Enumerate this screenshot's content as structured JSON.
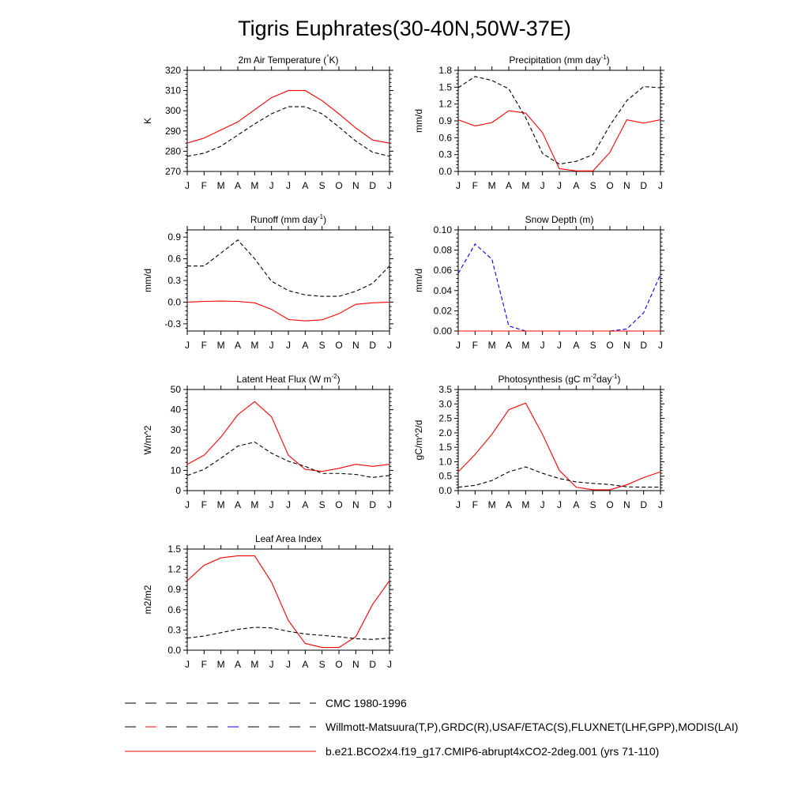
{
  "title": "Tigris Euphrates(30-40N,50W-37E)",
  "months": [
    "J",
    "F",
    "M",
    "A",
    "M",
    "J",
    "J",
    "A",
    "S",
    "O",
    "N",
    "D",
    "J"
  ],
  "legend": [
    {
      "label": "CMC 1980-1996",
      "style": "dash-black"
    },
    {
      "label": "Willmott-Matsuura(T,P),GRDC(R),USAF/ETAC(S),FLUXNET(LHF,GPP),MODIS(LAI)",
      "style": "dash-obs"
    },
    {
      "label": "b.e21.BCO2x4.f19_g17.CMIP6-abrupt4xCO2-2deg.001 (yrs 71-110)",
      "style": "solid-red"
    }
  ],
  "chart_data": [
    {
      "type": "line",
      "title": "2m Air Temperature (°K)",
      "ylabel": "K",
      "ylim": [
        270,
        320
      ],
      "yticks": [
        270,
        280,
        290,
        300,
        310,
        320
      ],
      "categories": [
        "J",
        "F",
        "M",
        "A",
        "M",
        "J",
        "J",
        "A",
        "S",
        "O",
        "N",
        "D",
        "J"
      ],
      "series": [
        {
          "name": "b.e21.BCO2x4.f19_g17.CMIP6-abrupt4xCO2-2deg.001 (yrs 71-110)",
          "color": "#ff0000",
          "dash": "solid",
          "values": [
            284,
            286.5,
            290.5,
            294.5,
            300.5,
            306.5,
            310,
            310,
            305,
            298.5,
            291.5,
            285.5,
            284
          ]
        },
        {
          "name": "Willmott-Matsuura",
          "color": "#000000",
          "dash": "dashed",
          "values": [
            277.5,
            279,
            282.5,
            288,
            293.5,
            298.5,
            302,
            302,
            298.5,
            292,
            285,
            279.5,
            277.5
          ]
        }
      ]
    },
    {
      "type": "line",
      "title": "Precipitation (mm day-1)",
      "ylabel": "mm/d",
      "ylim": [
        0,
        1.8
      ],
      "yticks": [
        0.0,
        0.3,
        0.6,
        0.9,
        1.2,
        1.5,
        1.8
      ],
      "categories": [
        "J",
        "F",
        "M",
        "A",
        "M",
        "J",
        "J",
        "A",
        "S",
        "O",
        "N",
        "D",
        "J"
      ],
      "series": [
        {
          "name": "b.e21.BCO2x4.f19_g17.CMIP6-abrupt4xCO2-2deg.001 (yrs 71-110)",
          "color": "#ff0000",
          "dash": "solid",
          "values": [
            0.92,
            0.81,
            0.87,
            1.08,
            1.04,
            0.69,
            0.05,
            0.01,
            0.01,
            0.34,
            0.92,
            0.86,
            0.92
          ]
        },
        {
          "name": "Willmott-Matsuura",
          "color": "#000000",
          "dash": "dashed",
          "values": [
            1.49,
            1.69,
            1.62,
            1.47,
            0.96,
            0.32,
            0.13,
            0.18,
            0.3,
            0.82,
            1.26,
            1.51,
            1.49
          ]
        }
      ]
    },
    {
      "type": "line",
      "title": "Runoff (mm day-1)",
      "ylabel": "mm/d",
      "ylim": [
        -0.4,
        1.0
      ],
      "yticks": [
        -0.3,
        0.0,
        0.3,
        0.6,
        0.9
      ],
      "categories": [
        "J",
        "F",
        "M",
        "A",
        "M",
        "J",
        "J",
        "A",
        "S",
        "O",
        "N",
        "D",
        "J"
      ],
      "series": [
        {
          "name": "b.e21.BCO2x4.f19_g17.CMIP6-abrupt4xCO2-2deg.001 (yrs 71-110)",
          "color": "#ff0000",
          "dash": "solid",
          "values": [
            0.0,
            0.01,
            0.015,
            0.01,
            -0.01,
            -0.1,
            -0.24,
            -0.26,
            -0.245,
            -0.16,
            -0.03,
            -0.01,
            0.0
          ]
        },
        {
          "name": "GRDC",
          "color": "#000000",
          "dash": "dashed",
          "values": [
            0.5,
            0.5,
            0.68,
            0.86,
            0.6,
            0.29,
            0.16,
            0.1,
            0.08,
            0.08,
            0.15,
            0.26,
            0.5
          ]
        }
      ]
    },
    {
      "type": "line",
      "title": "Snow Depth (m)",
      "ylabel": "mm/d",
      "ylim": [
        0,
        0.1
      ],
      "yticks": [
        0.0,
        0.02,
        0.04,
        0.06,
        0.08,
        0.1
      ],
      "tickFormat": "2dec",
      "categories": [
        "J",
        "F",
        "M",
        "A",
        "M",
        "J",
        "J",
        "A",
        "S",
        "O",
        "N",
        "D",
        "J"
      ],
      "series": [
        {
          "name": "USAF/ETAC",
          "color": "#0000ff",
          "dash": "dashed",
          "values": [
            0.057,
            0.086,
            0.071,
            0.005,
            0.0,
            0.0,
            0.0,
            0.0,
            0.0,
            0.0,
            0.002,
            0.018,
            0.056
          ]
        },
        {
          "name": "CMC 1980-1996",
          "color": "#000000",
          "dash": "dashed",
          "values": [
            0,
            0,
            0,
            0,
            0,
            0,
            0,
            0,
            0,
            0,
            0,
            0,
            0
          ]
        },
        {
          "name": "b.e21.BCO2x4.f19_g17.CMIP6-abrupt4xCO2-2deg.001 (yrs 71-110)",
          "color": "#ff0000",
          "dash": "solid",
          "values": [
            0,
            0,
            0,
            0,
            0,
            0,
            0,
            0,
            0,
            0,
            0,
            0,
            0
          ]
        }
      ]
    },
    {
      "type": "line",
      "title": "Latent Heat Flux (W m-2)",
      "ylabel": "W/m^2",
      "ylim": [
        0,
        50
      ],
      "yticks": [
        0,
        10,
        20,
        30,
        40,
        50
      ],
      "tickFormat": "int",
      "categories": [
        "J",
        "F",
        "M",
        "A",
        "M",
        "J",
        "J",
        "A",
        "S",
        "O",
        "N",
        "D",
        "J"
      ],
      "series": [
        {
          "name": "b.e21.BCO2x4.f19_g17.CMIP6-abrupt4xCO2-2deg.001 (yrs 71-110)",
          "color": "#ff0000",
          "dash": "solid",
          "values": [
            13,
            17.5,
            26.5,
            37.5,
            44,
            36.5,
            17.5,
            10.5,
            9.5,
            11,
            13,
            12,
            13
          ]
        },
        {
          "name": "FLUXNET",
          "color": "#000000",
          "dash": "dashed",
          "values": [
            7.5,
            10.5,
            16,
            22,
            24,
            18.5,
            14.5,
            12,
            8.5,
            8.5,
            8,
            6.5,
            7.5
          ]
        }
      ]
    },
    {
      "type": "line",
      "title": "Photosynthesis (gC m-2day-1)",
      "ylabel": "gC/m^2/d",
      "ylim": [
        0,
        3.5
      ],
      "yticks": [
        0.0,
        0.5,
        1.0,
        1.5,
        2.0,
        2.5,
        3.0,
        3.5
      ],
      "categories": [
        "J",
        "F",
        "M",
        "A",
        "M",
        "J",
        "J",
        "A",
        "S",
        "O",
        "N",
        "D",
        "J"
      ],
      "series": [
        {
          "name": "b.e21.BCO2x4.f19_g17.CMIP6-abrupt4xCO2-2deg.001 (yrs 71-110)",
          "color": "#ff0000",
          "dash": "solid",
          "values": [
            0.65,
            1.25,
            1.95,
            2.8,
            3.03,
            1.95,
            0.7,
            0.12,
            0.03,
            0.03,
            0.2,
            0.45,
            0.65
          ]
        },
        {
          "name": "FLUXNET",
          "color": "#000000",
          "dash": "dashed",
          "values": [
            0.12,
            0.18,
            0.35,
            0.65,
            0.82,
            0.6,
            0.42,
            0.3,
            0.25,
            0.21,
            0.13,
            0.12,
            0.12
          ]
        }
      ]
    },
    {
      "type": "line",
      "title": "Leaf Area Index",
      "ylabel": "m2/m2",
      "ylim": [
        0,
        1.5
      ],
      "yticks": [
        0.0,
        0.3,
        0.6,
        0.9,
        1.2,
        1.5
      ],
      "categories": [
        "J",
        "F",
        "M",
        "A",
        "M",
        "J",
        "J",
        "A",
        "S",
        "O",
        "N",
        "D",
        "J"
      ],
      "series": [
        {
          "name": "b.e21.BCO2x4.f19_g17.CMIP6-abrupt4xCO2-2deg.001 (yrs 71-110)",
          "color": "#ff0000",
          "dash": "solid",
          "values": [
            1.03,
            1.26,
            1.37,
            1.4,
            1.4,
            1.01,
            0.44,
            0.1,
            0.04,
            0.04,
            0.2,
            0.68,
            1.03
          ]
        },
        {
          "name": "MODIS",
          "color": "#000000",
          "dash": "dashed",
          "values": [
            0.18,
            0.21,
            0.26,
            0.31,
            0.34,
            0.33,
            0.28,
            0.24,
            0.22,
            0.2,
            0.17,
            0.16,
            0.18
          ]
        }
      ]
    }
  ]
}
